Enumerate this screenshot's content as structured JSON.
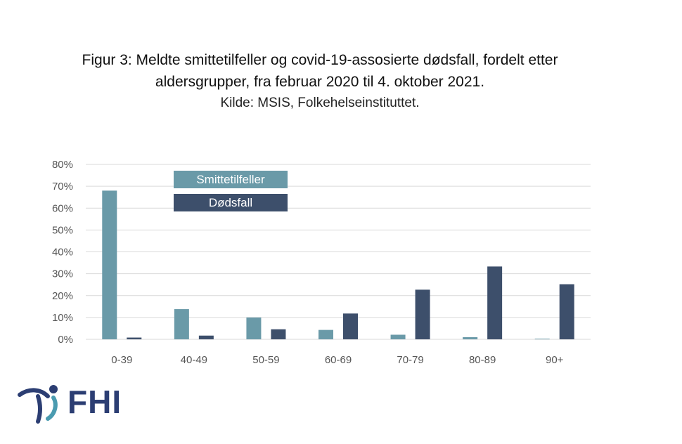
{
  "title": {
    "line1": "Figur 3: Meldte smittetilfeller og covid-19-assosierte dødsfall, fordelt etter",
    "line2": "aldersgrupper, fra februar 2020 til 4. oktober 2021.",
    "source": "Kilde: MSIS, Folkehelseinstituttet."
  },
  "logo": {
    "text": "FHI",
    "color": "#2c3e73"
  },
  "chart_data": {
    "type": "bar",
    "categories": [
      "0-39",
      "40-49",
      "50-59",
      "60-69",
      "70-79",
      "80-89",
      "90+"
    ],
    "series": [
      {
        "name": "Smittetilfeller",
        "color": "#6a9aa8",
        "values": [
          68.0,
          13.8,
          10.0,
          4.3,
          2.1,
          1.0,
          0.3
        ]
      },
      {
        "name": "Dødsfall",
        "color": "#3d4f6b",
        "values": [
          0.8,
          1.7,
          4.6,
          11.8,
          22.7,
          33.3,
          25.2
        ]
      }
    ],
    "ylim": [
      0,
      80
    ],
    "yticks": [
      0,
      10,
      20,
      30,
      40,
      50,
      60,
      70,
      80
    ],
    "ytick_labels": [
      "0%",
      "10%",
      "20%",
      "30%",
      "40%",
      "50%",
      "60%",
      "70%",
      "80%"
    ],
    "grid": true,
    "gridline_color": "#d9d9d9",
    "legend_placement": "top-left"
  }
}
